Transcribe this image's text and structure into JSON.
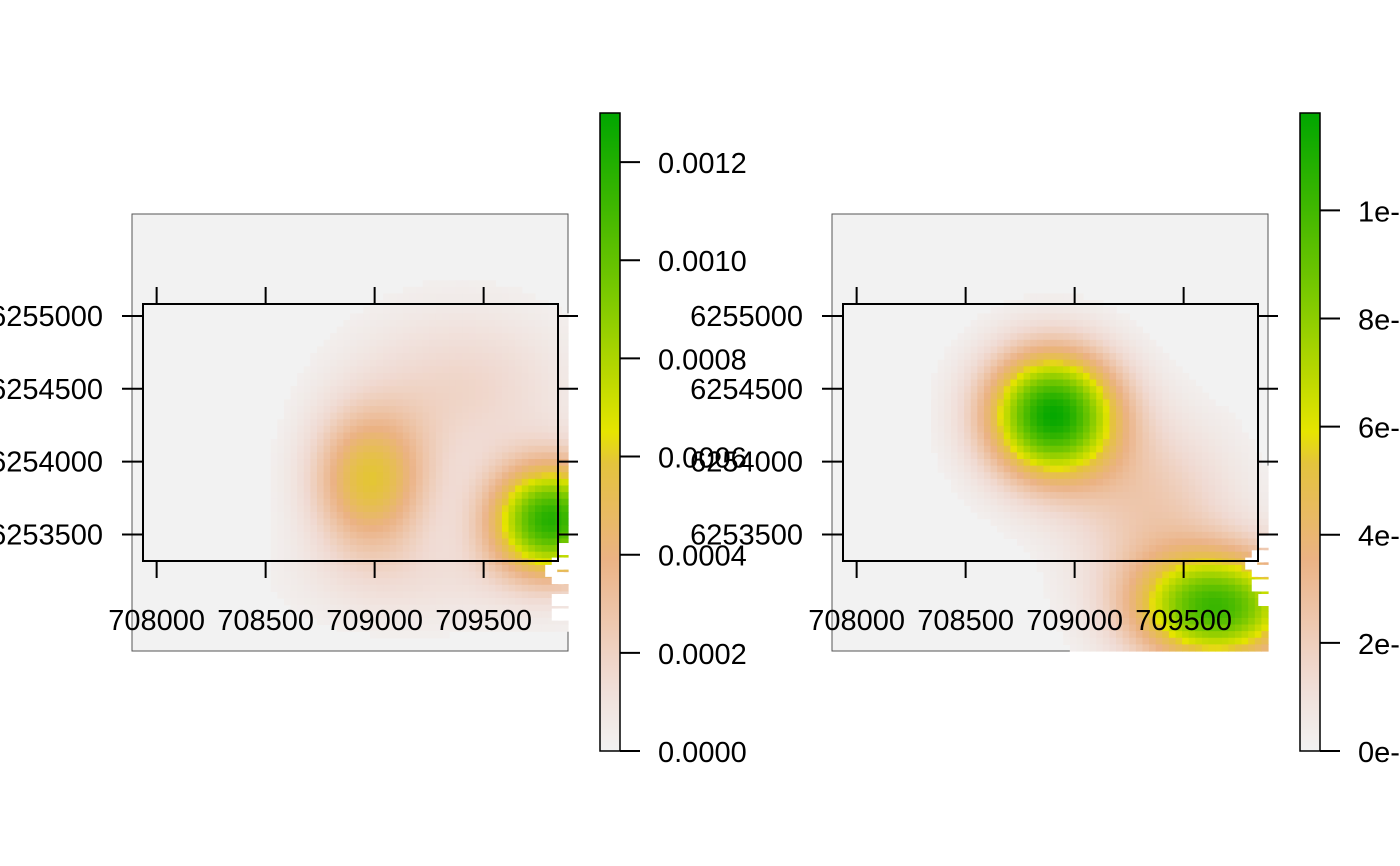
{
  "chart_data": [
    {
      "type": "heatmap",
      "title": "",
      "xlabel": "",
      "ylabel": "",
      "x_ticks": [
        708000,
        708500,
        709000,
        709500
      ],
      "x_tick_labels": [
        "708000",
        "708500",
        "709000",
        "709500"
      ],
      "y_ticks": [
        6253500,
        6254000,
        6254500,
        6255000
      ],
      "y_tick_labels": [
        "6253500",
        "6254000",
        "6254500",
        "6255000"
      ],
      "extent_x": [
        707887,
        709887
      ],
      "extent_y": [
        6252700,
        6255700
      ],
      "frame_x": [
        707945,
        709940
      ],
      "frame_y": [
        6253410,
        6255395
      ],
      "colorbar": {
        "min": 0.0,
        "max": 0.0013,
        "ticks": [
          0.0,
          0.0002,
          0.0004,
          0.0006,
          0.0008,
          0.001,
          0.0012
        ],
        "tick_labels": [
          "0.0000",
          "0.0002",
          "0.0004",
          "0.0006",
          "0.0008",
          "0.0010",
          "0.0012"
        ]
      },
      "hotspots": [
        {
          "x": 708980,
          "y": 6253870,
          "sx": 230,
          "sy": 420,
          "value": 0.00058
        },
        {
          "x": 709810,
          "y": 6253600,
          "sx": 240,
          "sy": 330,
          "value": 0.00118
        },
        {
          "x": 709400,
          "y": 6254500,
          "sx": 420,
          "sy": 480,
          "value": 0.00018
        },
        {
          "x": 709200,
          "y": 6253200,
          "sx": 500,
          "sy": 300,
          "value": 0.0001
        }
      ],
      "missing_cells": [
        {
          "x": 709840,
          "y": 6253200
        },
        {
          "x": 709870,
          "y": 6253200
        },
        {
          "x": 709870,
          "y": 6253300
        },
        {
          "x": 709840,
          "y": 6253300
        },
        {
          "x": 709870,
          "y": 6253400
        },
        {
          "x": 709810,
          "y": 6253250
        },
        {
          "x": 709840,
          "y": 6253050
        },
        {
          "x": 709870,
          "y": 6253050
        },
        {
          "x": 709870,
          "y": 6252950
        },
        {
          "x": 709840,
          "y": 6252950
        }
      ]
    },
    {
      "type": "heatmap",
      "title": "",
      "xlabel": "",
      "ylabel": "",
      "x_ticks": [
        708000,
        708500,
        709000,
        709500
      ],
      "x_tick_labels": [
        "708000",
        "708500",
        "709000",
        "709500"
      ],
      "y_ticks": [
        6253500,
        6254000,
        6254500,
        6255000
      ],
      "y_tick_labels": [
        "6253500",
        "6254000",
        "6254500",
        "6255000"
      ],
      "extent_x": [
        707887,
        709887
      ],
      "extent_y": [
        6252700,
        6255700
      ],
      "frame_x": [
        707945,
        709940
      ],
      "frame_y": [
        6253410,
        6255395
      ],
      "colorbar": {
        "min": 0.0,
        "max": 0.000118,
        "ticks": [
          0.0,
          2e-05,
          4e-05,
          6e-05,
          8e-05,
          0.0001
        ],
        "tick_labels": [
          "0e-",
          "2e-",
          "4e-",
          "6e-",
          "8e-",
          "1e-"
        ]
      },
      "hotspots": [
        {
          "x": 708900,
          "y": 6254320,
          "sx": 260,
          "sy": 380,
          "value": 0.000115
        },
        {
          "x": 709650,
          "y": 6253000,
          "sx": 330,
          "sy": 330,
          "value": 0.0001
        },
        {
          "x": 709350,
          "y": 6253700,
          "sx": 330,
          "sy": 500,
          "value": 2.2e-05
        }
      ],
      "missing_cells": [
        {
          "x": 709840,
          "y": 6253350
        },
        {
          "x": 709870,
          "y": 6253350
        },
        {
          "x": 709870,
          "y": 6253450
        },
        {
          "x": 709870,
          "y": 6253250
        },
        {
          "x": 709840,
          "y": 6253250
        },
        {
          "x": 709810,
          "y": 6253300
        },
        {
          "x": 709840,
          "y": 6253150
        },
        {
          "x": 709870,
          "y": 6253150
        },
        {
          "x": 709870,
          "y": 6253050
        }
      ]
    }
  ]
}
